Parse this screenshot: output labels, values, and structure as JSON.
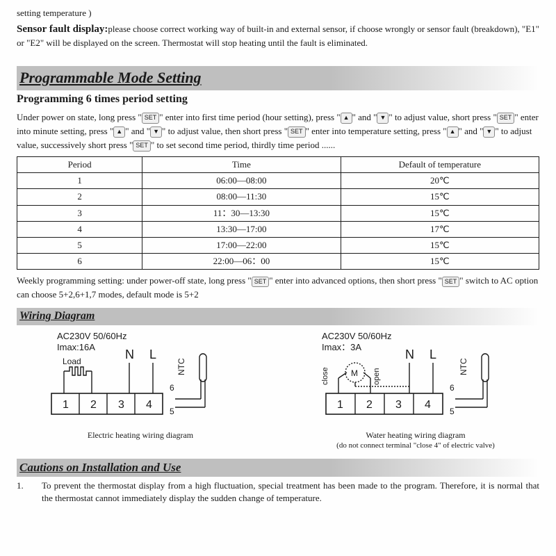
{
  "intro_tail": "setting temperature )",
  "sensor_fault": {
    "lead": "Sensor fault display:",
    "body": "please choose correct working way of built-in and external sensor, if choose wrongly or sensor fault (breakdown), \"E1\" or \"E2\" will be displayed on the screen. Thermostat will stop heating until the fault is eliminated."
  },
  "prog_mode_title": "Programmable Mode Setting",
  "prog6_title": "Programming 6 times period setting",
  "prog6_body_parts": {
    "p1": "Under power on state, long press \"",
    "p2": "\" enter into first time period (hour setting), press \"",
    "p3": "\" and \"",
    "p4": "\" to adjust value, short press \"",
    "p5": "\" enter into minute setting, press \"",
    "p6": "\" and \"",
    "p7": "\" to adjust value, then short press \"",
    "p8": "\" enter into temperature setting, press \"",
    "p9": "\" and \"",
    "p10": "\" to adjust value, successively short press \"",
    "p11": "\" to set second time period, thirdly time period ......"
  },
  "key_set": "SET",
  "key_up": "▲",
  "key_down": "▼",
  "period_table": {
    "headers": [
      "Period",
      "Time",
      "Default of temperature"
    ],
    "rows": [
      [
        "1",
        "06:00—08:00",
        "20℃"
      ],
      [
        "2",
        "08:00—11:30",
        "15℃"
      ],
      [
        "3",
        "11：30—13:30",
        "15℃"
      ],
      [
        "4",
        "13:30—17:00",
        "17℃"
      ],
      [
        "5",
        "17:00—22:00",
        "15℃"
      ],
      [
        "6",
        "22:00—06：00",
        "15℃"
      ]
    ],
    "col_widths": [
      "24%",
      "38%",
      "38%"
    ]
  },
  "weekly_parts": {
    "a": "Weekly programming setting: under power-off state, long press \"",
    "b": "\" enter into advanced options, then short press \"",
    "c": "\" switch to AC option can choose 5+2,6+1,7 modes, default mode is 5+2"
  },
  "wiring_heading": "Wiring Diagram",
  "wiring": {
    "left": {
      "spec1": "AC230V 50/60Hz",
      "spec2": "Imax:16A",
      "load": "Load",
      "N": "N",
      "L": "L",
      "NTC": "NTC",
      "t1": "1",
      "t2": "2",
      "t3": "3",
      "t4": "4",
      "t5": "5",
      "t6": "6",
      "caption": "Electric heating wiring diagram"
    },
    "right": {
      "spec1": "AC230V 50/60Hz",
      "spec2": "Imax：3A",
      "close": "close",
      "open": "open",
      "M": "M",
      "N": "N",
      "L": "L",
      "NTC": "NTC",
      "t1": "1",
      "t2": "2",
      "t3": "3",
      "t4": "4",
      "t5": "5",
      "t6": "6",
      "caption": "Water heating wiring diagram",
      "caption_sub": "(do not connect terminal \"close 4\" of electric valve)"
    }
  },
  "cautions_heading": "Cautions on Installation and Use",
  "cautions": [
    {
      "num": "1.",
      "text": "To prevent the thermostat display from a high fluctuation, special treatment has been made to the program. Therefore, it is normal that the thermostat cannot immediately display the sudden change of temperature."
    }
  ],
  "colors": {
    "text": "#1a1a1a",
    "band": "#bfbfbf",
    "bg": "#fefefe",
    "stroke": "#1a1a1a"
  }
}
